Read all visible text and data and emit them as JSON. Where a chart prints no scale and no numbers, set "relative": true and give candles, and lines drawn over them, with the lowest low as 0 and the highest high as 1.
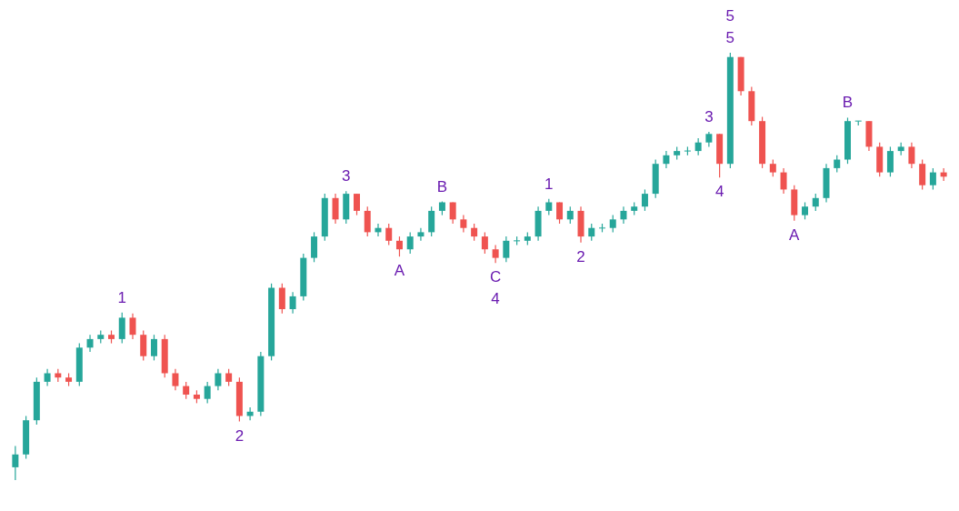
{
  "chart_data": {
    "type": "candlestick",
    "relative": true,
    "tick_labels": false,
    "grid": false,
    "colors": [
      "#26a69a",
      "#26a69a",
      "#26a69a",
      "#26a69a",
      "#ef5350",
      "#ef5350",
      "#26a69a",
      "#26a69a",
      "#26a69a",
      "#ef5350",
      "#26a69a",
      "#ef5350",
      "#ef5350",
      "#26a69a",
      "#ef5350",
      "#ef5350",
      "#ef5350",
      "#ef5350",
      "#26a69a",
      "#26a69a",
      "#ef5350",
      "#ef5350",
      "#26a69a",
      "#26a69a",
      "#26a69a",
      "#ef5350",
      "#26a69a",
      "#26a69a",
      "#26a69a",
      "#26a69a",
      "#ef5350",
      "#26a69a",
      "#ef5350",
      "#ef5350",
      "#26a69a",
      "#ef5350",
      "#ef5350",
      "#26a69a",
      "#26a69a",
      "#26a69a",
      "#26a69a",
      "#ef5350",
      "#ef5350",
      "#ef5350",
      "#ef5350",
      "#ef5350",
      "#26a69a",
      "#26a69a",
      "#26a69a",
      "#26a69a",
      "#26a69a",
      "#ef5350",
      "#26a69a",
      "#ef5350",
      "#26a69a",
      "#26a69a",
      "#26a69a",
      "#26a69a",
      "#26a69a",
      "#26a69a",
      "#26a69a",
      "#26a69a",
      "#26a69a",
      "#26a69a",
      "#26a69a",
      "#26a69a",
      "#ef5350",
      "#26a69a",
      "#ef5350",
      "#ef5350",
      "#ef5350",
      "#ef5350",
      "#ef5350",
      "#ef5350",
      "#26a69a",
      "#26a69a",
      "#26a69a",
      "#26a69a",
      "#26a69a",
      "#26a69a",
      "#ef5350",
      "#ef5350",
      "#26a69a",
      "#26a69a",
      "#ef5350",
      "#ef5350",
      "#26a69a",
      "#ef5350"
    ],
    "categories": [
      null,
      null,
      null,
      null,
      null,
      null,
      null,
      null,
      null,
      null,
      null,
      null,
      null,
      null,
      null,
      null,
      null,
      null,
      null,
      null,
      null,
      null,
      null,
      null,
      null,
      null,
      null,
      null,
      null,
      null,
      null,
      null,
      null,
      null,
      null,
      null,
      null,
      null,
      null,
      null,
      null,
      null,
      null,
      null,
      null,
      null,
      null,
      null,
      null,
      null,
      null,
      null,
      null,
      null,
      null,
      null,
      null,
      null,
      null,
      null,
      null,
      null,
      null,
      null,
      null,
      null,
      null,
      null,
      null,
      null,
      null,
      null,
      null,
      null,
      null,
      null,
      null,
      null,
      null,
      null,
      null,
      null,
      null,
      null,
      null,
      null,
      null,
      null
    ],
    "ohlc": [
      [
        0.03,
        0.08,
        0,
        0.06
      ],
      [
        0.06,
        0.15,
        0.05,
        0.14
      ],
      [
        0.14,
        0.24,
        0.13,
        0.23
      ],
      [
        0.23,
        0.26,
        0.22,
        0.25
      ],
      [
        0.25,
        0.26,
        0.23,
        0.24
      ],
      [
        0.24,
        0.25,
        0.22,
        0.23
      ],
      [
        0.23,
        0.32,
        0.22,
        0.31
      ],
      [
        0.31,
        0.34,
        0.3,
        0.33
      ],
      [
        0.33,
        0.35,
        0.32,
        0.34
      ],
      [
        0.34,
        0.35,
        0.32,
        0.33
      ],
      [
        0.33,
        0.392,
        0.32,
        0.38
      ],
      [
        0.38,
        0.39,
        0.33,
        0.34
      ],
      [
        0.34,
        0.35,
        0.28,
        0.29
      ],
      [
        0.29,
        0.34,
        0.28,
        0.33
      ],
      [
        0.33,
        0.34,
        0.24,
        0.25
      ],
      [
        0.25,
        0.26,
        0.21,
        0.22
      ],
      [
        0.22,
        0.23,
        0.19,
        0.2
      ],
      [
        0.2,
        0.21,
        0.18,
        0.19
      ],
      [
        0.19,
        0.23,
        0.18,
        0.22
      ],
      [
        0.22,
        0.26,
        0.21,
        0.25
      ],
      [
        0.25,
        0.26,
        0.22,
        0.23
      ],
      [
        0.23,
        0.24,
        0.137,
        0.15
      ],
      [
        0.15,
        0.17,
        0.14,
        0.16
      ],
      [
        0.16,
        0.3,
        0.15,
        0.29
      ],
      [
        0.29,
        0.46,
        0.28,
        0.45
      ],
      [
        0.45,
        0.46,
        0.39,
        0.4
      ],
      [
        0.4,
        0.44,
        0.39,
        0.43
      ],
      [
        0.43,
        0.53,
        0.42,
        0.52
      ],
      [
        0.52,
        0.58,
        0.51,
        0.57
      ],
      [
        0.57,
        0.67,
        0.56,
        0.66
      ],
      [
        0.66,
        0.67,
        0.6,
        0.61
      ],
      [
        0.61,
        0.676,
        0.6,
        0.67
      ],
      [
        0.67,
        0.67,
        0.62,
        0.63
      ],
      [
        0.63,
        0.64,
        0.57,
        0.58
      ],
      [
        0.58,
        0.6,
        0.57,
        0.59
      ],
      [
        0.59,
        0.6,
        0.55,
        0.56
      ],
      [
        0.56,
        0.57,
        0.523,
        0.54
      ],
      [
        0.54,
        0.58,
        0.53,
        0.57
      ],
      [
        0.57,
        0.59,
        0.56,
        0.58
      ],
      [
        0.58,
        0.64,
        0.57,
        0.63
      ],
      [
        0.63,
        0.652,
        0.62,
        0.65
      ],
      [
        0.65,
        0.65,
        0.6,
        0.61
      ],
      [
        0.61,
        0.62,
        0.58,
        0.59
      ],
      [
        0.59,
        0.6,
        0.56,
        0.57
      ],
      [
        0.57,
        0.58,
        0.53,
        0.54
      ],
      [
        0.54,
        0.55,
        0.508,
        0.52
      ],
      [
        0.52,
        0.57,
        0.51,
        0.56
      ],
      [
        0.56,
        0.57,
        0.55,
        0.56
      ],
      [
        0.56,
        0.58,
        0.55,
        0.57
      ],
      [
        0.57,
        0.64,
        0.56,
        0.63
      ],
      [
        0.63,
        0.658,
        0.62,
        0.65
      ],
      [
        0.65,
        0.65,
        0.6,
        0.61
      ],
      [
        0.61,
        0.64,
        0.6,
        0.63
      ],
      [
        0.63,
        0.64,
        0.556,
        0.57
      ],
      [
        0.57,
        0.6,
        0.56,
        0.59
      ],
      [
        0.59,
        0.6,
        0.58,
        0.59
      ],
      [
        0.59,
        0.62,
        0.58,
        0.61
      ],
      [
        0.61,
        0.64,
        0.6,
        0.63
      ],
      [
        0.63,
        0.65,
        0.62,
        0.64
      ],
      [
        0.64,
        0.68,
        0.63,
        0.67
      ],
      [
        0.67,
        0.75,
        0.66,
        0.74
      ],
      [
        0.74,
        0.77,
        0.73,
        0.76
      ],
      [
        0.76,
        0.78,
        0.75,
        0.77
      ],
      [
        0.77,
        0.78,
        0.76,
        0.77
      ],
      [
        0.77,
        0.8,
        0.76,
        0.79
      ],
      [
        0.79,
        0.815,
        0.78,
        0.81
      ],
      [
        0.81,
        0.81,
        0.708,
        0.74
      ],
      [
        0.74,
        1,
        0.73,
        0.99
      ],
      [
        0.99,
        0.99,
        0.9,
        0.91
      ],
      [
        0.91,
        0.92,
        0.83,
        0.84
      ],
      [
        0.84,
        0.85,
        0.73,
        0.74
      ],
      [
        0.74,
        0.75,
        0.71,
        0.72
      ],
      [
        0.72,
        0.73,
        0.67,
        0.68
      ],
      [
        0.68,
        0.69,
        0.607,
        0.62
      ],
      [
        0.62,
        0.65,
        0.61,
        0.64
      ],
      [
        0.64,
        0.67,
        0.63,
        0.66
      ],
      [
        0.66,
        0.74,
        0.65,
        0.73
      ],
      [
        0.73,
        0.76,
        0.72,
        0.75
      ],
      [
        0.75,
        0.848,
        0.74,
        0.84
      ],
      [
        0.84,
        0.84,
        0.83,
        0.84
      ],
      [
        0.84,
        0.84,
        0.77,
        0.78
      ],
      [
        0.78,
        0.79,
        0.71,
        0.72
      ],
      [
        0.72,
        0.78,
        0.71,
        0.77
      ],
      [
        0.77,
        0.79,
        0.76,
        0.78
      ],
      [
        0.78,
        0.79,
        0.73,
        0.74
      ],
      [
        0.74,
        0.75,
        0.68,
        0.69
      ],
      [
        0.69,
        0.73,
        0.68,
        0.72
      ],
      [
        0.72,
        0.73,
        0.7,
        0.71
      ]
    ],
    "annotations": [
      {
        "text": "1",
        "y": 0.392
      },
      {
        "text": "2",
        "y": 0.137
      },
      {
        "text": "3",
        "y": 0.676
      },
      {
        "text": "A",
        "y": 0.523
      },
      {
        "text": "B",
        "y": 0.652
      },
      {
        "text": "C",
        "y": 0.508
      },
      {
        "text": "4",
        "y": 0.508
      },
      {
        "text": "1",
        "y": 0.658
      },
      {
        "text": "2",
        "y": 0.556
      },
      {
        "text": "3",
        "y": 0.815
      },
      {
        "text": "4",
        "y": 0.708
      },
      {
        "text": "5",
        "y": 1
      },
      {
        "text": "5",
        "y": 1
      },
      {
        "text": "A",
        "y": 0.607
      },
      {
        "text": "B",
        "y": 0.848
      }
    ]
  }
}
